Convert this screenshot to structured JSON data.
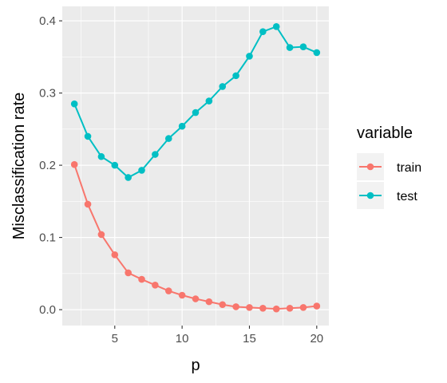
{
  "chart_data": {
    "type": "line",
    "xlabel": "p",
    "ylabel": "Misclassification rate",
    "x": [
      2,
      3,
      4,
      5,
      6,
      7,
      8,
      9,
      10,
      11,
      12,
      13,
      14,
      15,
      16,
      17,
      18,
      19,
      20
    ],
    "xlim": [
      1.1,
      20.9
    ],
    "ylim": [
      -0.022,
      0.42
    ],
    "x_ticks": [
      5,
      10,
      15,
      20
    ],
    "x_tick_labels": [
      "5",
      "10",
      "15",
      "20"
    ],
    "y_ticks": [
      0.0,
      0.1,
      0.2,
      0.3,
      0.4
    ],
    "y_tick_labels": [
      "0.0",
      "0.1",
      "0.2",
      "0.3",
      "0.4"
    ],
    "grid": true,
    "legend": {
      "title": "variable",
      "position": "right"
    },
    "series": [
      {
        "name": "train",
        "color": "#F8766D",
        "values": [
          0.201,
          0.146,
          0.104,
          0.076,
          0.051,
          0.042,
          0.034,
          0.026,
          0.02,
          0.015,
          0.011,
          0.007,
          0.004,
          0.003,
          0.002,
          0.001,
          0.002,
          0.003,
          0.005
        ]
      },
      {
        "name": "test",
        "color": "#00BFC4",
        "values": [
          0.285,
          0.24,
          0.212,
          0.2,
          0.183,
          0.193,
          0.215,
          0.237,
          0.254,
          0.273,
          0.289,
          0.309,
          0.324,
          0.351,
          0.385,
          0.392,
          0.363,
          0.364,
          0.356
        ]
      }
    ]
  }
}
